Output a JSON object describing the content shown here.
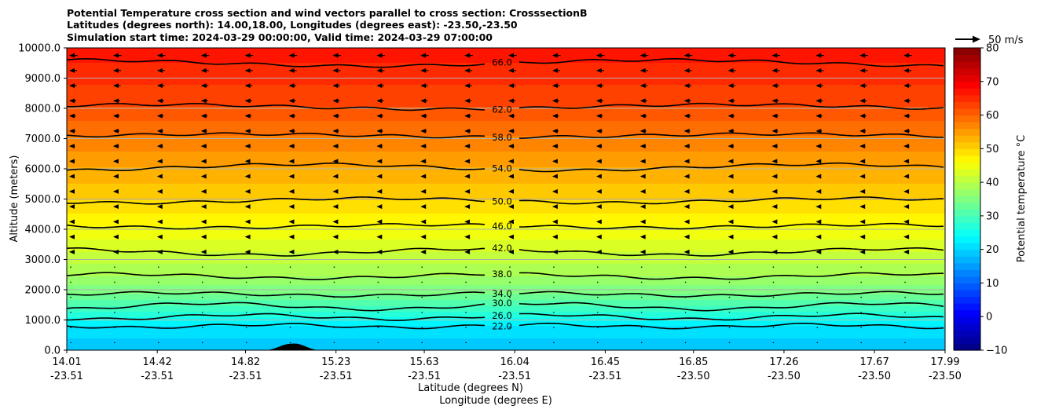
{
  "chart_data": {
    "type": "heatmap",
    "title_lines": [
      "Potential Temperature cross section and wind vectors parallel to cross section: CrosssectionB",
      "Latitudes (degrees north): 14.00,18.00, Longitudes (degrees east): -23.50,-23.50",
      "Simulation start time: 2024-03-29 00:00:00, Valid time: 2024-03-29 07:00:00"
    ],
    "ylabel": "Altitude (meters)",
    "xlabel_line1": "Latitude (degrees N)",
    "xlabel_line2": "Longitude (degrees E)",
    "ylim": [
      0,
      10000
    ],
    "xlim": [
      14.01,
      17.99
    ],
    "y_ticks": [
      "0.0",
      "1000.0",
      "2000.0",
      "3000.0",
      "4000.0",
      "5000.0",
      "6000.0",
      "7000.0",
      "8000.0",
      "9000.0",
      "10000.0"
    ],
    "x_ticks": [
      {
        "lat": "14.01",
        "lon": "-23.51"
      },
      {
        "lat": "14.42",
        "lon": "-23.51"
      },
      {
        "lat": "14.82",
        "lon": "-23.51"
      },
      {
        "lat": "15.23",
        "lon": "-23.51"
      },
      {
        "lat": "15.63",
        "lon": "-23.51"
      },
      {
        "lat": "16.04",
        "lon": "-23.51"
      },
      {
        "lat": "16.45",
        "lon": "-23.51"
      },
      {
        "lat": "16.85",
        "lon": "-23.50"
      },
      {
        "lat": "17.26",
        "lon": "-23.50"
      },
      {
        "lat": "17.67",
        "lon": "-23.50"
      },
      {
        "lat": "17.99",
        "lon": "-23.50"
      }
    ],
    "horizontal_grid": true,
    "colorbar": {
      "label": "Potential temperature $^\\circ$C",
      "range": [
        -10,
        80
      ],
      "ticks": [
        "−10",
        "0",
        "10",
        "20",
        "30",
        "40",
        "50",
        "60",
        "70",
        "80"
      ],
      "colormap": "jet"
    },
    "wind_reference": {
      "label": "50 m/s",
      "speed": 50
    },
    "contour_levels": [
      {
        "label": "22.0",
        "value": 22,
        "alt": 800
      },
      {
        "label": "26.0",
        "value": 26,
        "alt": 1100
      },
      {
        "label": "30.0",
        "value": 30,
        "alt": 1450
      },
      {
        "label": "34.0",
        "value": 34,
        "alt": 1850
      },
      {
        "label": "38.0",
        "value": 38,
        "alt": 2450
      },
      {
        "label": "42.0",
        "value": 42,
        "alt": 3250
      },
      {
        "label": "46.0",
        "value": 46,
        "alt": 4100
      },
      {
        "label": "50.0",
        "value": 50,
        "alt": 4950
      },
      {
        "label": "54.0",
        "value": 54,
        "alt": 6050
      },
      {
        "label": "58.0",
        "value": 58,
        "alt": 7100
      },
      {
        "label": "62.0",
        "value": 62,
        "alt": 8050
      },
      {
        "label": "66.0",
        "value": 66,
        "alt": 9500
      }
    ],
    "theta_profile": [
      {
        "alt": 0,
        "theta": 18
      },
      {
        "alt": 800,
        "theta": 22
      },
      {
        "alt": 1100,
        "theta": 26
      },
      {
        "alt": 1450,
        "theta": 30
      },
      {
        "alt": 1850,
        "theta": 34
      },
      {
        "alt": 2450,
        "theta": 38
      },
      {
        "alt": 3250,
        "theta": 42
      },
      {
        "alt": 4100,
        "theta": 46
      },
      {
        "alt": 4950,
        "theta": 50
      },
      {
        "alt": 6050,
        "theta": 54
      },
      {
        "alt": 7100,
        "theta": 58
      },
      {
        "alt": 8050,
        "theta": 62
      },
      {
        "alt": 9500,
        "theta": 66
      },
      {
        "alt": 10000,
        "theta": 68
      }
    ],
    "terrain": {
      "lat_start": 14.9,
      "lat_peak": 15.04,
      "lat_end": 15.16,
      "peak_alt": 220
    }
  }
}
